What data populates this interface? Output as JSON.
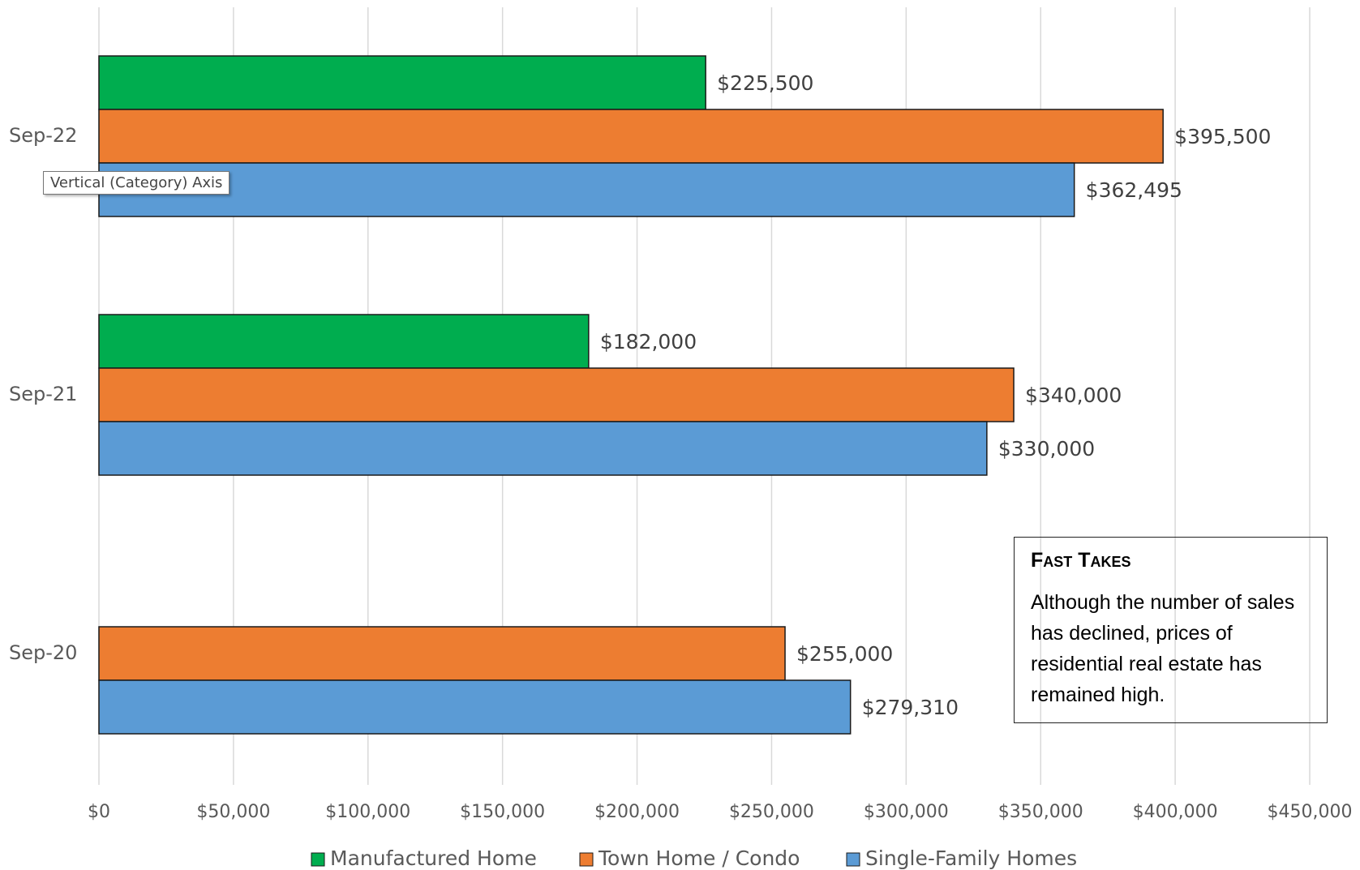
{
  "chart_data": {
    "type": "bar",
    "orientation": "horizontal",
    "categories": [
      "Sep-22",
      "Sep-21",
      "Sep-20"
    ],
    "series": [
      {
        "name": "Manufactured Home",
        "color": "#00ad4f",
        "values": [
          225500,
          182000,
          null
        ],
        "value_labels": [
          "$225,500",
          "$182,000",
          null
        ]
      },
      {
        "name": "Town Home / Condo",
        "color": "#ed7d31",
        "values": [
          395500,
          340000,
          255000
        ],
        "value_labels": [
          "$395,500",
          "$340,000",
          "$255,000"
        ]
      },
      {
        "name": "Single-Family Homes",
        "color": "#5b9bd5",
        "values": [
          362495,
          330000,
          279310
        ],
        "value_labels": [
          "$362,495",
          "$330,000",
          "$279,310"
        ]
      }
    ],
    "xlim": [
      0,
      450000
    ],
    "xticks": [
      {
        "value": 0,
        "label": "$0"
      },
      {
        "value": 50000,
        "label": "$50,000"
      },
      {
        "value": 100000,
        "label": "$100,000"
      },
      {
        "value": 150000,
        "label": "$150,000"
      },
      {
        "value": 200000,
        "label": "$200,000"
      },
      {
        "value": 250000,
        "label": "$250,000"
      },
      {
        "value": 300000,
        "label": "$300,000"
      },
      {
        "value": 350000,
        "label": "$350,000"
      },
      {
        "value": 400000,
        "label": "$400,000"
      },
      {
        "value": 450000,
        "label": "$450,000"
      }
    ],
    "grid": true,
    "legend": "bottom",
    "tooltip": "Vertical (Category) Axis",
    "callout": {
      "title": "Fast Takes",
      "text": "Although the number of sales has declined, prices of residential real estate has remained high."
    }
  }
}
